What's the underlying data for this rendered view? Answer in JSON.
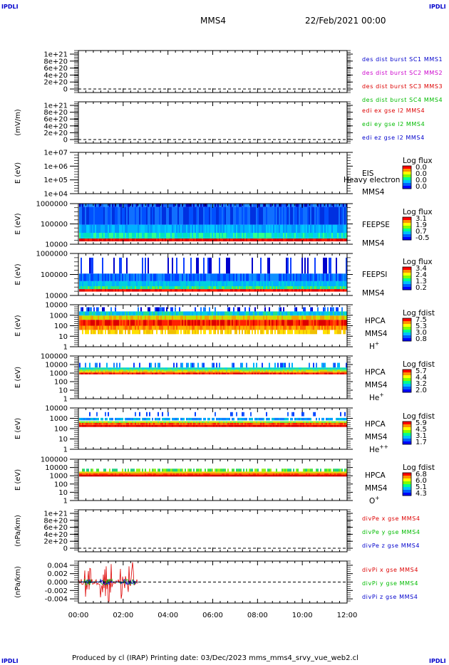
{
  "corner_labels": {
    "tl": "IPDLI",
    "tr": "IPDLI",
    "bl": "IPDLI",
    "br": "IPDLI"
  },
  "header": {
    "spacecraft": "MMS4",
    "date": "22/Feb/2021 00:00"
  },
  "footer": {
    "text": "Produced by cl (IRAP)   Printing date: 03/Dec/2023   mms_mms4_srvy_vue_web2.cl"
  },
  "time_axis": {
    "ticks": [
      "00:00",
      "02:00",
      "04:00",
      "06:00",
      "08:00",
      "10:00",
      "12:00"
    ]
  },
  "colors": {
    "red": "#dd0000",
    "green": "#00bb00",
    "blue": "#0000cc",
    "magenta": "#cc00cc"
  },
  "chart_data": [
    {
      "type": "line",
      "ylabel": "",
      "yticks": [
        "1e+21",
        "8e+20",
        "6e+20",
        "4e+20",
        "2e+20",
        "0"
      ],
      "ylim": [
        0,
        1e+21
      ],
      "zero_line": true,
      "legend": [
        {
          "text": "des dist burst SC1 MMS1",
          "color": "#0000cc"
        },
        {
          "text": "des dist burst SC2 MMS2",
          "color": "#cc00cc"
        },
        {
          "text": "des dist burst SC3 MMS3",
          "color": "#dd0000"
        },
        {
          "text": "des dist burst SC4 MMS4",
          "color": "#00bb00"
        }
      ]
    },
    {
      "type": "line",
      "ylabel": "(mV/m)",
      "yticks": [
        "1e+21",
        "8e+20",
        "6e+20",
        "4e+20",
        "2e+20",
        "0"
      ],
      "ylim": [
        0,
        1e+21
      ],
      "zero_line": true,
      "legend": [
        {
          "text": "edi ex gse l2 MMS4",
          "color": "#dd0000"
        },
        {
          "text": "edi ey gse l2 MMS4",
          "color": "#00bb00"
        },
        {
          "text": "edi ez gse l2 MMS4",
          "color": "#0000cc"
        }
      ]
    },
    {
      "type": "heatmap",
      "ylabel": "E (eV)",
      "yticks": [
        "1e+07",
        "1e+06",
        "1e+05",
        "1e+04"
      ],
      "side_labels": [
        "EIS",
        "MMS4"
      ],
      "overlay": "Heavy electron to",
      "colorbar": {
        "title": "Log flux",
        "ticks": [
          "0.0",
          "0.0",
          "0.0",
          "0.0"
        ]
      },
      "fill": "none"
    },
    {
      "type": "heatmap",
      "ylabel": "E (eV)",
      "yticks": [
        "1000000",
        "100000",
        "10000"
      ],
      "side_labels": [
        "FEEPSE",
        "MMS4"
      ],
      "colorbar": {
        "title": "Log flux",
        "ticks": [
          "3.1",
          "1.9",
          "0.7",
          "-0.5"
        ]
      },
      "fill": "feepse"
    },
    {
      "type": "heatmap",
      "ylabel": "E (eV)",
      "yticks": [
        "1000000",
        "100000",
        "10000"
      ],
      "side_labels": [
        "FEEPSI",
        "MMS4"
      ],
      "colorbar": {
        "title": "Log flux",
        "ticks": [
          "3.4",
          "2.4",
          "1.3",
          "0.2"
        ]
      },
      "fill": "feepsi"
    },
    {
      "type": "heatmap",
      "ylabel": "E (eV)",
      "yticks": [
        "10000",
        "1000",
        "100",
        "10",
        "1"
      ],
      "side_labels": [
        "HPCA",
        "MMS4"
      ],
      "species": "H",
      "species_sup": "+",
      "colorbar": {
        "title": "Log fdist",
        "ticks": [
          "7.5",
          "5.3",
          "3.0",
          "0.8"
        ]
      },
      "fill": "hplus"
    },
    {
      "type": "heatmap",
      "ylabel": "E (eV)",
      "yticks": [
        "100000",
        "10000",
        "1000",
        "100",
        "10",
        "1"
      ],
      "side_labels": [
        "HPCA",
        "MMS4"
      ],
      "species": "He",
      "species_sup": "+",
      "colorbar": {
        "title": "Log fdist",
        "ticks": [
          "5.7",
          "4.4",
          "3.2",
          "2.0"
        ]
      },
      "fill": "heplus"
    },
    {
      "type": "heatmap",
      "ylabel": "E (eV)",
      "yticks": [
        "10000",
        "1000",
        "100",
        "10",
        "1"
      ],
      "side_labels": [
        "HPCA",
        "MMS4"
      ],
      "species": "He",
      "species_sup": "++",
      "colorbar": {
        "title": "Log fdist",
        "ticks": [
          "5.9",
          "4.5",
          "3.1",
          "1.7"
        ]
      },
      "fill": "heplusplus"
    },
    {
      "type": "heatmap",
      "ylabel": "E (eV)",
      "yticks": [
        "100000",
        "10000",
        "1000",
        "100",
        "10",
        "1"
      ],
      "side_labels": [
        "HPCA",
        "MMS4"
      ],
      "species": "O",
      "species_sup": "+",
      "colorbar": {
        "title": "Log fdist",
        "ticks": [
          "6.8",
          "6.0",
          "5.1",
          "4.3"
        ]
      },
      "fill": "oplus"
    },
    {
      "type": "line",
      "ylabel": "(nPa/km)",
      "yticks": [
        "1e+21",
        "8e+20",
        "6e+20",
        "4e+20",
        "2e+20",
        "0"
      ],
      "ylim": [
        0,
        1e+21
      ],
      "zero_line": true,
      "legend": [
        {
          "text": "divPe x gse MMS4",
          "color": "#dd0000"
        },
        {
          "text": "divPe y gse MMS4",
          "color": "#00bb00"
        },
        {
          "text": "divPe z gse MMS4",
          "color": "#0000cc"
        }
      ]
    },
    {
      "type": "line",
      "ylabel": "(nPa/km)",
      "yticks": [
        "0.004",
        "0.002",
        "0.000",
        "-0.002",
        "-0.004"
      ],
      "ylim": [
        -0.005,
        0.005
      ],
      "zero_line": true,
      "data_until": "02:40",
      "legend": [
        {
          "text": "divPi x gse MMS4",
          "color": "#dd0000"
        },
        {
          "text": "divPi y gse MMS4",
          "color": "#00bb00"
        },
        {
          "text": "divPi z gse MMS4",
          "color": "#0000cc"
        }
      ]
    }
  ]
}
